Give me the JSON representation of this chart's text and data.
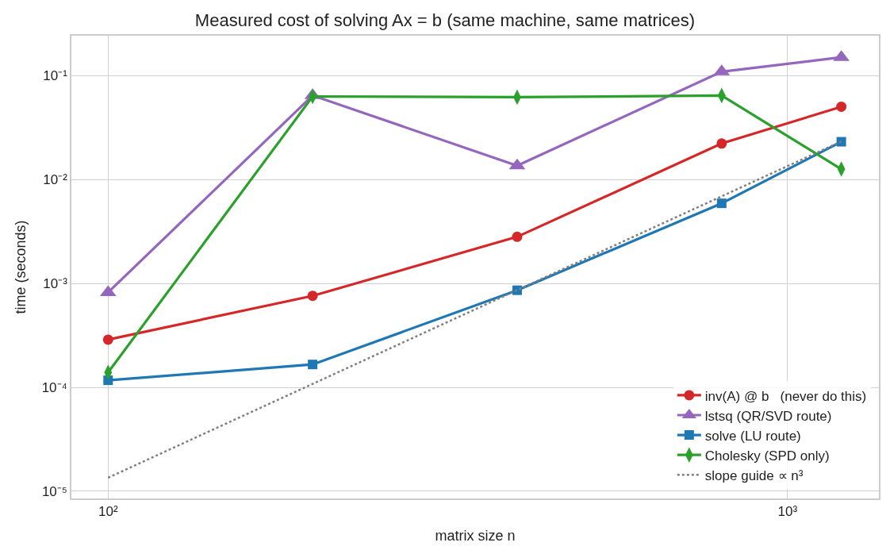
{
  "chart_data": {
    "type": "line",
    "title": "Measured cost of solving Ax = b (same machine, same matrices)",
    "xlabel": "matrix size n",
    "ylabel": "time (seconds)",
    "x": [
      100,
      200,
      400,
      800,
      1200
    ],
    "series": [
      {
        "name": "inv(A) @ b   (never do this)",
        "color": "#d62728",
        "marker": "circle",
        "values": [
          0.000288,
          0.00076,
          0.00281,
          0.0222,
          0.0502
        ]
      },
      {
        "name": "lstsq (QR/SVD route)",
        "color": "#9467bd",
        "marker": "triangle",
        "values": [
          0.00082,
          0.0643,
          0.0136,
          0.109,
          0.15
        ]
      },
      {
        "name": "solve (LU route)",
        "color": "#1f77b4",
        "marker": "square",
        "values": [
          0.000117,
          0.000166,
          0.00086,
          0.0059,
          0.0231
        ]
      },
      {
        "name": "Cholesky (SPD only)",
        "color": "#2ca02c",
        "marker": "diamond",
        "values": [
          0.000139,
          0.063,
          0.062,
          0.0643,
          0.0126
        ]
      },
      {
        "name": "slope guide ∝ n³",
        "color": "#7f7f7f",
        "marker": "none",
        "line_style": "dotted",
        "values": [
          1.35e-05,
          0.000108,
          0.000864,
          0.00691,
          0.0233
        ]
      }
    ],
    "log": "xy",
    "xlim": [
      88.3,
      1363
    ],
    "ylim": [
      8.53e-06,
      0.242
    ],
    "xticks": [
      {
        "value": 100,
        "label": "10²"
      },
      {
        "value": 1000,
        "label": "10³"
      }
    ],
    "yticks": [
      {
        "value": 1e-05,
        "label": "10⁻⁵"
      },
      {
        "value": 0.0001,
        "label": "10⁻⁴"
      },
      {
        "value": 0.001,
        "label": "10⁻³"
      },
      {
        "value": 0.01,
        "label": "10⁻²"
      },
      {
        "value": 0.1,
        "label": "10⁻¹"
      }
    ],
    "grid": true,
    "legend": "bottom right",
    "line_style": "solid"
  }
}
